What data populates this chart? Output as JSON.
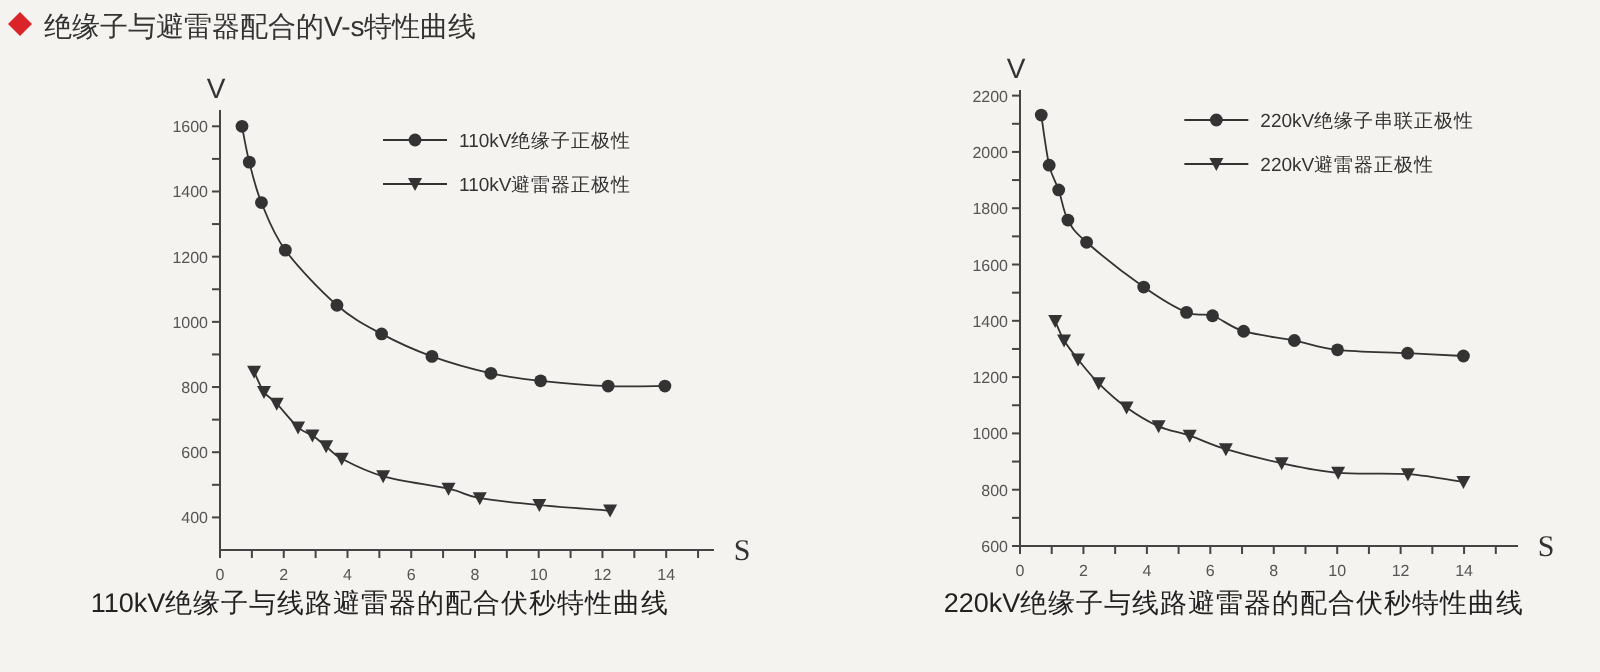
{
  "chart_data": [
    {
      "type": "line",
      "title": "绝缘子与避雷器配合的V-s特性曲线",
      "xlabel": "S",
      "ylabel": "V",
      "annotations": [
        "110kV绝缘子与线路避雷器的配合伏秒特性曲线"
      ],
      "legend": "top right",
      "xlim": [
        0,
        15.5
      ],
      "ylim": [
        300,
        1650
      ],
      "xticks": [
        0,
        {
          "value": 1,
          "label": null
        },
        2,
        {
          "value": 3,
          "label": null
        },
        4,
        {
          "value": 5,
          "label": null
        },
        6,
        {
          "value": 7,
          "label": null
        },
        8,
        {
          "value": 9,
          "label": null
        },
        10,
        {
          "value": 11,
          "label": null
        },
        12,
        {
          "value": 13,
          "label": null
        },
        14,
        {
          "value": 15,
          "label": null
        }
      ],
      "yticks": [
        400,
        {
          "value": 500,
          "label": null
        },
        600,
        {
          "value": 700,
          "label": null
        },
        800,
        {
          "value": 900,
          "label": null
        },
        1000,
        {
          "value": 1100,
          "label": null
        },
        1200,
        {
          "value": 1300,
          "label": null
        },
        1400,
        {
          "value": 1500,
          "label": null
        },
        1600
      ],
      "series": [
        {
          "name": "110kV绝缘子正极性",
          "color": "#333333",
          "marker": "circle",
          "x": [
            0.69,
            0.92,
            1.3,
            2.05,
            3.67,
            5.07,
            6.65,
            8.5,
            10.06,
            12.18,
            13.96
          ],
          "values": [
            1600,
            1490,
            1366,
            1220,
            1051,
            963,
            894,
            842,
            819,
            803,
            803
          ]
        },
        {
          "name": "110kV避雷器正极性",
          "color": "#333333",
          "marker": "triangle",
          "x": [
            1.07,
            1.38,
            1.78,
            2.45,
            2.9,
            3.33,
            3.82,
            5.12,
            7.17,
            8.15,
            10.02,
            12.24
          ],
          "values": [
            847,
            785,
            749,
            676,
            651,
            618,
            580,
            526,
            488,
            459,
            438,
            421
          ]
        }
      ]
    },
    {
      "type": "line",
      "xlabel": "S",
      "ylabel": "V",
      "annotations": [
        "220kV绝缘子与线路避雷器的配合伏秒特性曲线"
      ],
      "legend": "top right",
      "xlim": [
        0,
        15.7
      ],
      "ylim": [
        600,
        2220
      ],
      "xticks": [
        0,
        {
          "value": 1,
          "label": null
        },
        2,
        {
          "value": 3,
          "label": null
        },
        4,
        {
          "value": 5,
          "label": null
        },
        6,
        {
          "value": 7,
          "label": null
        },
        8,
        {
          "value": 9,
          "label": null
        },
        10,
        {
          "value": 11,
          "label": null
        },
        12,
        {
          "value": 13,
          "label": null
        },
        14,
        {
          "value": 15,
          "label": null
        }
      ],
      "yticks": [
        600,
        {
          "value": 700,
          "label": null
        },
        800,
        {
          "value": 900,
          "label": null
        },
        1000,
        {
          "value": 1100,
          "label": null
        },
        1200,
        {
          "value": 1300,
          "label": null
        },
        1400,
        {
          "value": 1500,
          "label": null
        },
        1600,
        {
          "value": 1700,
          "label": null
        },
        1800,
        {
          "value": 1900,
          "label": null
        },
        2000,
        {
          "value": 2100,
          "label": null
        },
        2200
      ],
      "series": [
        {
          "name": "220kV绝缘子串联正极性",
          "color": "#333333",
          "marker": "circle",
          "x": [
            0.67,
            0.92,
            1.22,
            1.51,
            2.1,
            3.9,
            5.25,
            6.07,
            7.05,
            8.65,
            10.01,
            12.22,
            13.98
          ],
          "values": [
            2131,
            1953,
            1865,
            1758,
            1679,
            1520,
            1430,
            1418,
            1363,
            1330,
            1297,
            1285,
            1275
          ]
        },
        {
          "name": "220kV避雷器正极性",
          "color": "#333333",
          "marker": "triangle",
          "x": [
            1.11,
            1.39,
            1.83,
            2.48,
            3.36,
            4.37,
            5.35,
            6.49,
            8.25,
            10.03,
            12.23,
            13.98
          ],
          "values": [
            1399,
            1330,
            1263,
            1178,
            1092,
            1025,
            992,
            944,
            894,
            860,
            855,
            827
          ]
        }
      ]
    }
  ]
}
